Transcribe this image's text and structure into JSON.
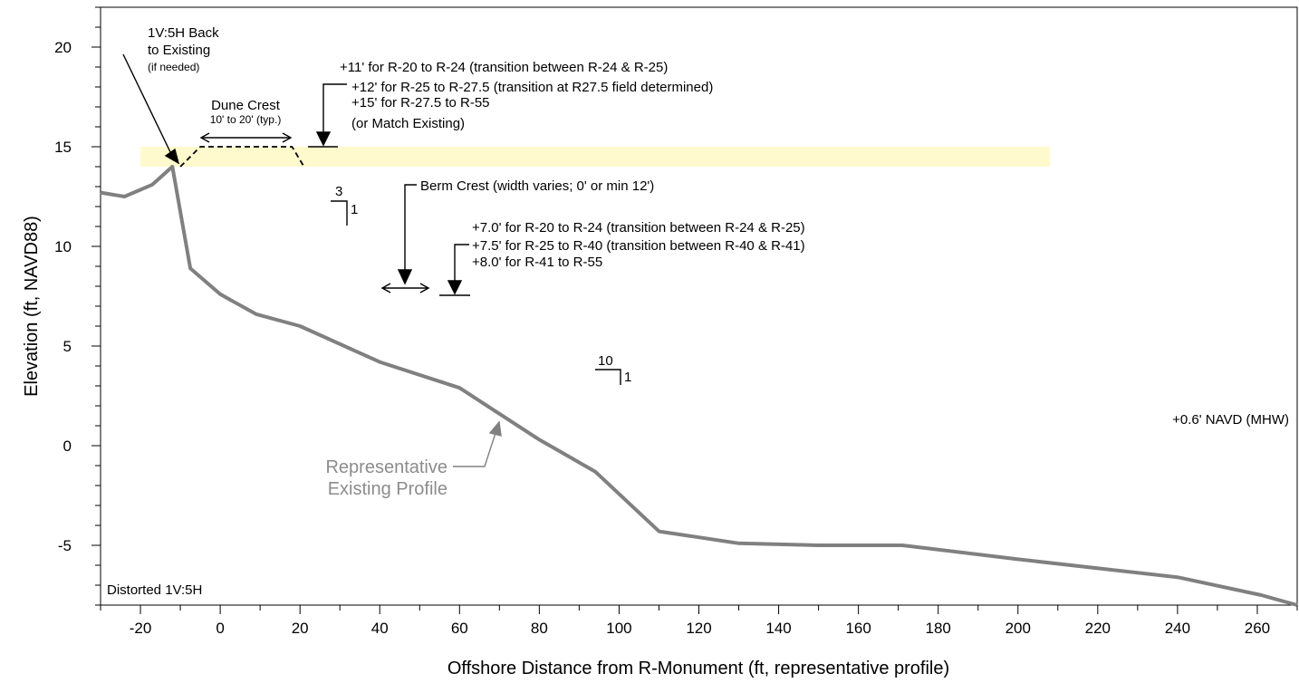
{
  "chart_data": {
    "type": "line",
    "xlabel": "Offshore Distance from R-Monument (ft, representative profile)",
    "ylabel": "Elevation (ft, NAVD88)",
    "xlim": [
      -30,
      270
    ],
    "ylim": [
      -8.0,
      22.0
    ],
    "x_ticks": [
      -20,
      0,
      20,
      40,
      60,
      80,
      100,
      120,
      140,
      160,
      180,
      200,
      220,
      240,
      260
    ],
    "y_ticks": [
      20,
      15,
      10,
      5,
      0,
      -5
    ],
    "grid": false,
    "series": [
      {
        "name": "Representative Existing Profile",
        "color": "#808080",
        "x": [
          -30,
          -24,
          -17,
          -12,
          -7.5,
          0,
          9,
          20,
          40,
          60,
          70,
          80,
          94,
          110,
          130,
          150,
          171,
          200,
          240,
          261,
          270
        ],
        "y": [
          12.7,
          12.5,
          13.1,
          14.0,
          8.9,
          7.6,
          6.6,
          6.0,
          4.2,
          2.9,
          1.6,
          0.3,
          -1.3,
          -4.3,
          -4.9,
          -5.0,
          -5.0,
          -5.7,
          -6.6,
          -7.5,
          -8.0
        ]
      },
      {
        "name": "Dune template",
        "color": "#000000",
        "dashed": true,
        "x": [
          -10,
          -5,
          18,
          21
        ],
        "y": [
          14.0,
          15.0,
          15.0,
          14.0
        ]
      }
    ],
    "highlight_band": {
      "x": [
        -20,
        208
      ],
      "y": [
        14.0,
        15.0
      ],
      "color": "#fffacd"
    },
    "annotations": {
      "back_to_existing": [
        "1V:5H Back",
        "to Existing"
      ],
      "back_to_existing_note": "(if needed)",
      "dune_crest": "Dune Crest",
      "dune_crest_note": "10' to 20' (typ.)",
      "dune_elevations": [
        "+11' for R-20 to R-24 (transition between R-24 & R-25)",
        "+12' for R-25 to R-27.5 (transition at R27.5 field determined)",
        "+15' for R-27.5 to R-55",
        "(or Match Existing)"
      ],
      "slope_dune_run": "3",
      "slope_dune_rise": "1",
      "berm_crest": "Berm Crest (width varies; 0' or min 12')",
      "berm_elevations": [
        "+7.0' for R-20 to R-24 (transition between R-24 & R-25)",
        "+7.5' for R-25 to R-40 (transition between R-40 & R-41)",
        "+8.0' for R-41 to R-55"
      ],
      "slope_berm_run": "10",
      "slope_berm_rise": "1",
      "mhw": "+0.6' NAVD (MHW)",
      "profile_label": [
        "Representative",
        "Existing Profile"
      ],
      "distorted": "Distorted 1V:5H"
    }
  }
}
